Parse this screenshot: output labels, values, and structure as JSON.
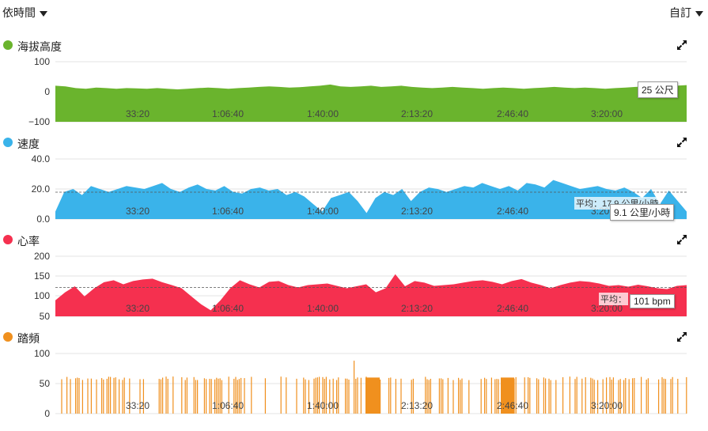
{
  "toolbar": {
    "time_mode": "依時間",
    "custom": "自訂"
  },
  "x_ticks": [
    "33:20",
    "1:06:40",
    "1:40:00",
    "2:13:20",
    "2:46:40",
    "3:20:00"
  ],
  "colors": {
    "altitude": "#6ab42d",
    "speed": "#3ab3ea",
    "heart": "#f5304f",
    "cadence": "#f0901e"
  },
  "icons": {
    "expand": "expand-arrows-icon",
    "dropdown": "chevron-down-icon"
  },
  "chart_data": [
    {
      "type": "area",
      "title": "海拔高度",
      "y_ticks": [
        "100",
        "0",
        "−100"
      ],
      "ylim": [
        -100,
        100
      ],
      "x_range_seconds": [
        0,
        14000
      ],
      "series": [
        {
          "color": "#6ab42d",
          "values": [
            20,
            18,
            12,
            10,
            14,
            12,
            10,
            12,
            11,
            10,
            12,
            10,
            8,
            10,
            12,
            14,
            12,
            10,
            12,
            14,
            16,
            18,
            16,
            14,
            15,
            18,
            20,
            24,
            18,
            16,
            18,
            20,
            16,
            18,
            20,
            16,
            14,
            12,
            14,
            16,
            14,
            12,
            10,
            12,
            14,
            12,
            10,
            12,
            14,
            16,
            14,
            12,
            14,
            12,
            10,
            12,
            14,
            16,
            18,
            16,
            18,
            20,
            22
          ]
        }
      ],
      "tooltip": "25 公尺"
    },
    {
      "type": "area",
      "title": "速度",
      "y_ticks": [
        "40.0",
        "20.0",
        "0.0"
      ],
      "ylim": [
        0,
        40
      ],
      "x_range_seconds": [
        0,
        14000
      ],
      "series": [
        {
          "color": "#3ab3ea",
          "values": [
            5,
            18,
            20,
            16,
            22,
            20,
            18,
            20,
            22,
            21,
            20,
            22,
            24,
            20,
            18,
            21,
            23,
            20,
            19,
            22,
            18,
            17,
            20,
            21,
            19,
            20,
            16,
            18,
            15,
            10,
            5,
            14,
            16,
            18,
            12,
            4,
            14,
            18,
            16,
            20,
            12,
            18,
            21,
            20,
            18,
            20,
            22,
            21,
            24,
            22,
            20,
            22,
            19,
            24,
            23,
            21,
            26,
            24,
            22,
            20,
            21,
            22,
            20,
            19,
            21,
            18,
            14,
            20,
            10,
            19,
            12,
            5
          ]
        }
      ],
      "average": "平均：17.9 公里/小時",
      "average_value": 17.9,
      "tooltip": "9.1 公里/小時"
    },
    {
      "type": "area",
      "title": "心率",
      "y_ticks": [
        "200",
        "150",
        "100",
        "50"
      ],
      "ylim": [
        50,
        200
      ],
      "x_range_seconds": [
        0,
        14000
      ],
      "series": [
        {
          "color": "#f5304f",
          "values": [
            90,
            110,
            125,
            100,
            120,
            135,
            140,
            130,
            138,
            142,
            144,
            135,
            128,
            120,
            100,
            80,
            65,
            90,
            120,
            140,
            130,
            122,
            136,
            138,
            128,
            122,
            128,
            130,
            132,
            126,
            120,
            125,
            130,
            110,
            120,
            155,
            125,
            138,
            134,
            126,
            128,
            130,
            134,
            138,
            140,
            136,
            130,
            138,
            143,
            134,
            128,
            120,
            128,
            134,
            138,
            136,
            132,
            126,
            128,
            124,
            129,
            125,
            120,
            118,
            126,
            128
          ]
        }
      ],
      "average": "平均：",
      "average_value": 122,
      "tooltip": "101 bpm"
    },
    {
      "type": "bar",
      "title": "踏頻",
      "y_ticks": [
        "100",
        "50",
        "0"
      ],
      "ylim": [
        0,
        100
      ],
      "x_range_seconds": [
        0,
        14000
      ],
      "series": [
        {
          "color": "#f0901e",
          "typical_value": 60,
          "peak_value": 88
        }
      ]
    }
  ]
}
